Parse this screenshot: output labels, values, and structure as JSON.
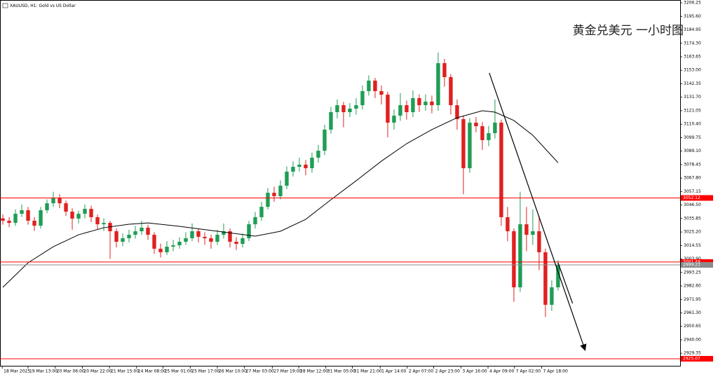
{
  "chart_data": {
    "type": "candlestick",
    "title": "XAUUSD, H1:  Gold vs US Dollar",
    "annotation": "黄金兑美元 一小时图",
    "up_color": "#1f9d55",
    "down_color": "#e02020",
    "open": [
      3036.0,
      3034.1,
      3032.4,
      3039.6,
      3042.4,
      3034.1,
      3030.2,
      3042.4,
      3047.9,
      3052.4,
      3047.9,
      3041.3,
      3035.8,
      3039.6,
      3043.5,
      3036.9,
      3031.3,
      3032.4,
      3025.8,
      3017.5,
      3020.3,
      3023.0,
      3025.8,
      3028.6,
      3023.0,
      3012.0,
      3009.2,
      3013.6,
      3014.7,
      3017.5,
      3020.3,
      3025.8,
      3021.4,
      3020.3,
      3017.5,
      3023.0,
      3025.8,
      3017.5,
      3015.8,
      3020.3,
      3031.3,
      3036.9,
      3045.1,
      3056.2,
      3053.5,
      3061.8,
      3072.9,
      3076.7,
      3078.4,
      3075.6,
      3083.9,
      3089.4,
      3106.1,
      3119.9,
      3125.4,
      3119.9,
      3122.7,
      3125.4,
      3136.5,
      3144.8,
      3136.5,
      3133.7,
      3111.6,
      3117.1,
      3125.4,
      3119.9,
      3131.0,
      3125.4,
      3128.2,
      3125.4,
      3158.6,
      3147.6,
      3125.4,
      3114.4,
      3075.6,
      3111.6,
      3108.8,
      3097.8,
      3103.3,
      3111.6,
      3036.9,
      3025.8,
      2981.5,
      3031.3,
      3023.0,
      3025.8,
      3009.2,
      2967.7,
      2981.5
    ],
    "high": [
      3039,
      3037,
      3043,
      3047,
      3045,
      3037,
      3045,
      3051,
      3057,
      3055,
      3050,
      3044,
      3042,
      3047,
      3046,
      3039,
      3036,
      3034,
      3028,
      3024,
      3027,
      3030,
      3034,
      3031,
      3025,
      3016,
      3018,
      3019,
      3021,
      3025,
      3032,
      3028,
      3025,
      3023,
      3027,
      3032,
      3028,
      3021,
      3024,
      3034,
      3041,
      3049,
      3060,
      3061,
      3066,
      3077,
      3081,
      3084,
      3082,
      3088,
      3094,
      3110,
      3124,
      3130,
      3128,
      3127,
      3131,
      3141,
      3149,
      3147,
      3141,
      3136,
      3122,
      3135,
      3129,
      3137,
      3134,
      3134,
      3133,
      3167,
      3162,
      3150,
      3130,
      3117,
      3115,
      3116,
      3112,
      3109,
      3130,
      3114,
      3045,
      3028,
      3057,
      3045,
      3043,
      3038,
      3012,
      2987,
      3003
    ],
    "low": [
      3031,
      3029,
      3030,
      3037,
      3031,
      3026,
      3028,
      3040,
      3045,
      3044,
      3038,
      3027,
      3032,
      3036,
      3033,
      3027,
      3026,
      3004,
      3013,
      3014,
      3017,
      3020,
      3023,
      3019,
      3008,
      3005,
      3007,
      3010,
      3012,
      3015,
      3018,
      3017,
      3015,
      3012,
      3015,
      3020,
      3013,
      3011,
      3013,
      3018,
      3028,
      3034,
      3043,
      3049,
      3051,
      3059,
      3069,
      3073,
      3070,
      3072,
      3080,
      3086,
      3103,
      3115,
      3108,
      3116,
      3118,
      3122,
      3133,
      3131,
      3126,
      3100,
      3106,
      3113,
      3114,
      3116,
      3120,
      3121,
      3119,
      3121,
      3140,
      3118,
      3106,
      3055,
      3072,
      3104,
      3090,
      3093,
      3099,
      3030,
      3018,
      2970,
      2978,
      3010,
      3015,
      2995,
      2958,
      2963,
      2979
    ],
    "close": [
      3034.1,
      3032.4,
      3039.6,
      3042.4,
      3034.1,
      3030.2,
      3042.4,
      3047.9,
      3052.4,
      3047.9,
      3041.3,
      3035.8,
      3039.6,
      3043.5,
      3036.9,
      3031.3,
      3032.4,
      3025.8,
      3017.5,
      3020.3,
      3023.0,
      3025.8,
      3028.6,
      3023.0,
      3012.0,
      3009.2,
      3013.6,
      3014.7,
      3017.5,
      3020.3,
      3025.8,
      3021.4,
      3020.3,
      3017.5,
      3023.0,
      3025.8,
      3017.5,
      3015.8,
      3020.3,
      3031.3,
      3036.9,
      3045.1,
      3056.2,
      3053.5,
      3061.8,
      3072.9,
      3076.7,
      3078.4,
      3075.6,
      3083.9,
      3089.4,
      3106.1,
      3119.9,
      3125.4,
      3119.9,
      3122.7,
      3125.4,
      3136.5,
      3144.8,
      3136.5,
      3133.7,
      3111.6,
      3117.1,
      3125.4,
      3119.9,
      3131.0,
      3125.4,
      3128.2,
      3125.4,
      3158.6,
      3147.6,
      3125.4,
      3114.4,
      3075.6,
      3111.6,
      3108.8,
      3097.8,
      3103.3,
      3111.6,
      3036.9,
      3025.8,
      2981.5,
      3031.3,
      3023.0,
      3025.8,
      3009.2,
      2967.7,
      2981.5,
      2999.2
    ],
    "xlim": [
      -0.45,
      107.35
    ],
    "xticks": [
      {
        "value": -0.1,
        "label": "18 Mar 2025"
      },
      {
        "value": 4.0,
        "label": "19 Mar 13:00"
      },
      {
        "value": 8.3,
        "label": "20 Mar 06:00"
      },
      {
        "value": 12.6,
        "label": "20 Mar 22:00"
      },
      {
        "value": 16.9,
        "label": "21 Mar 15:00"
      },
      {
        "value": 21.2,
        "label": "24 Mar 08:00"
      },
      {
        "value": 25.4,
        "label": "25 Mar 01:00"
      },
      {
        "value": 29.7,
        "label": "25 Mar 17:00"
      },
      {
        "value": 34.0,
        "label": "26 Mar 10:00"
      },
      {
        "value": 38.3,
        "label": "27 Mar 03:00"
      },
      {
        "value": 42.7,
        "label": "27 Mar 19:00"
      },
      {
        "value": 46.9,
        "label": "28 Mar 12:00"
      },
      {
        "value": 51.2,
        "label": "31 Mar 05:00"
      },
      {
        "value": 55.4,
        "label": "31 Mar 21:00"
      },
      {
        "value": 59.8,
        "label": "1 Apr 14:00"
      },
      {
        "value": 64.1,
        "label": "2 Apr 07:00"
      },
      {
        "value": 68.3,
        "label": "2 Apr 23:00"
      },
      {
        "value": 72.6,
        "label": "3 Apr 16:00"
      },
      {
        "value": 76.9,
        "label": "4 Apr 09:00"
      },
      {
        "value": 81.1,
        "label": "7 Apr 02:00"
      },
      {
        "value": 85.4,
        "label": "7 Apr 18:00"
      }
    ],
    "ylim": [
      2919.5,
      3208.5
    ],
    "yticks": [
      3206.25,
      {
        "value": 3195.6,
        "label": "3195.60"
      },
      3184.95,
      {
        "value": 3174.3,
        "label": "3174.30"
      },
      3163.65,
      {
        "value": 3153,
        "label": "3153.00"
      },
      3142.35,
      {
        "value": 3131.7,
        "label": "3131.70"
      },
      3121.05,
      {
        "value": 3110.4,
        "label": "3110.40"
      },
      3099.75,
      {
        "value": 3089.1,
        "label": "3089.10"
      },
      3078.45,
      {
        "value": 3067.8,
        "label": "3067.80"
      },
      3057.15,
      {
        "value": 3046.5,
        "label": "3046.50"
      },
      3035.85,
      {
        "value": 3025.2,
        "label": "3025.20"
      },
      3014.55,
      {
        "value": 3003.9,
        "label": "3003.90"
      },
      2993.25,
      {
        "value": 2982.6,
        "label": "2982.60"
      },
      2971.95,
      {
        "value": 2961.3,
        "label": "2961.30"
      },
      2950.65,
      {
        "value": 2940,
        "label": "2940.00"
      },
      2929.35
    ],
    "grid": false,
    "moving_average": {
      "color": "#000000",
      "x": [
        0,
        4,
        8,
        12,
        16,
        20,
        23,
        28,
        34,
        40,
        44,
        48,
        52,
        56,
        60,
        64,
        68,
        72,
        76,
        78,
        81,
        84,
        88
      ],
      "values": [
        2981.5,
        3000.9,
        3013.6,
        3023.0,
        3028.6,
        3031.3,
        3032.4,
        3029.7,
        3025.8,
        3021.9,
        3025.8,
        3035.2,
        3050.7,
        3065.7,
        3081.2,
        3095.0,
        3106.1,
        3115.5,
        3121.0,
        3119.9,
        3113.3,
        3101.6,
        3080.0
      ]
    },
    "trendlines": [
      {
        "x": [
          77.1,
          92.3
        ],
        "y": [
          3150.9,
          2931.7
        ],
        "arrow": true,
        "color": "#000000"
      },
      {
        "x": [
          88,
          90.3
        ],
        "y": [
          3000.9,
          2968.8
        ],
        "arrow": false,
        "color": "#000000"
      }
    ],
    "price_lines": [
      {
        "value": 3052.12,
        "color": "#ff0000"
      },
      {
        "value": 3001.49,
        "color": "#ff0000"
      },
      {
        "value": 2999.23,
        "color": "#8c8c8c"
      },
      {
        "value": 2925.07,
        "color": "#ff0000"
      }
    ]
  }
}
